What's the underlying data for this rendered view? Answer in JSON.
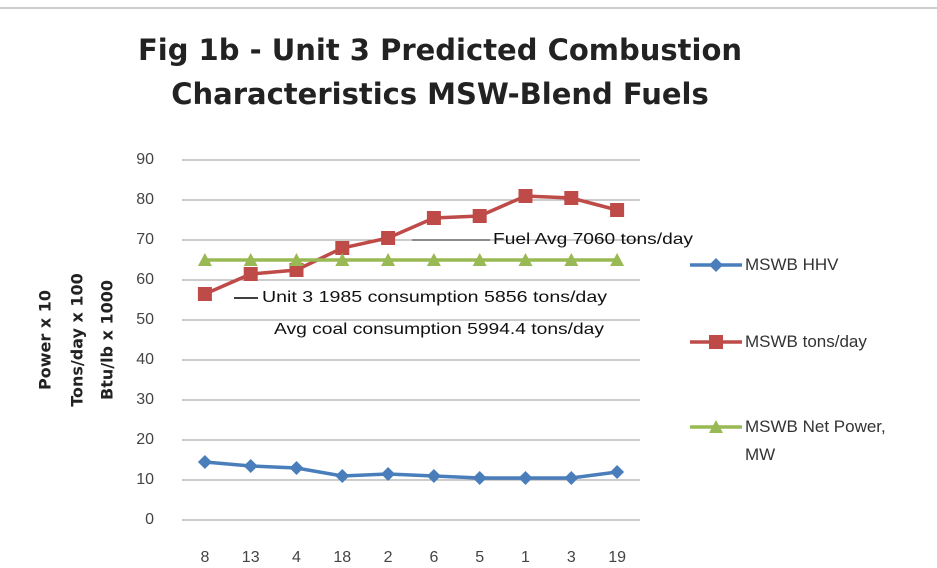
{
  "chart_data": {
    "type": "line",
    "title": "Fig 1b - Unit 3 Predicted Combustion Characteristics MSW-Blend Fuels",
    "y_label": [
      "Power x 10",
      "Tons/day x 100",
      "Btu/lb x 1000"
    ],
    "categories": [
      "8",
      "13",
      "4",
      "18",
      "2",
      "6",
      "5",
      "1",
      "3",
      "19"
    ],
    "series": [
      {
        "name": "MSWB HHV",
        "color": "#4a7ebb",
        "marker": "diamond",
        "values": [
          14.5,
          13.5,
          13,
          11,
          11.5,
          11,
          10.5,
          10.5,
          10.5,
          12
        ]
      },
      {
        "name": "MSWB tons/day",
        "color": "#be4b48",
        "marker": "square",
        "values": [
          56.5,
          61.5,
          62.5,
          68,
          70.5,
          75.5,
          76,
          81,
          80.5,
          77.5
        ]
      },
      {
        "name": "MSWB Net Power, MW",
        "color": "#98b954",
        "marker": "triangle",
        "values": [
          65,
          65,
          65,
          65,
          65,
          65,
          65,
          65,
          65,
          65
        ]
      }
    ],
    "annotations": [
      "Fuel Avg 7060 tons/day",
      "Unit 3 1985 consumption 5856 tons/day",
      "Avg coal consumption 5994.4 tons/day"
    ],
    "ylim": [
      0,
      90
    ],
    "yticks": [
      0,
      10,
      20,
      30,
      40,
      50,
      60,
      70,
      80,
      90
    ],
    "grid": true,
    "legend": "right"
  }
}
